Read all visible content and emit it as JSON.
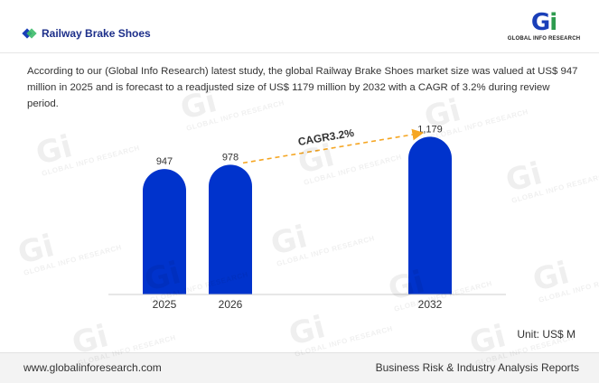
{
  "header": {
    "title": "Railway Brake Shoes",
    "logo_mark_g": "G",
    "logo_mark_i": "i",
    "logo_text": "GLOBAL INFO RESEARCH"
  },
  "description": "According to our (Global Info Research) latest study, the global Railway Brake Shoes market size was valued at US$ 947 million in 2025 and is forecast to a readjusted size of US$ 1179 million by 2032 with a CAGR of 3.2% during review period.",
  "chart_data": {
    "type": "bar",
    "categories": [
      "2025",
      "2026",
      "2032"
    ],
    "values": [
      947,
      978,
      1179
    ],
    "value_labels": [
      "947",
      "978",
      "1,179"
    ],
    "annotation": "CAGR3.2%",
    "unit": "Unit: US$ M",
    "bar_color": "#0033cc",
    "arrow_color": "#f5a623"
  },
  "footer": {
    "website": "www.globalinforesearch.com",
    "tagline": "Business Risk & Industry Analysis Reports"
  }
}
